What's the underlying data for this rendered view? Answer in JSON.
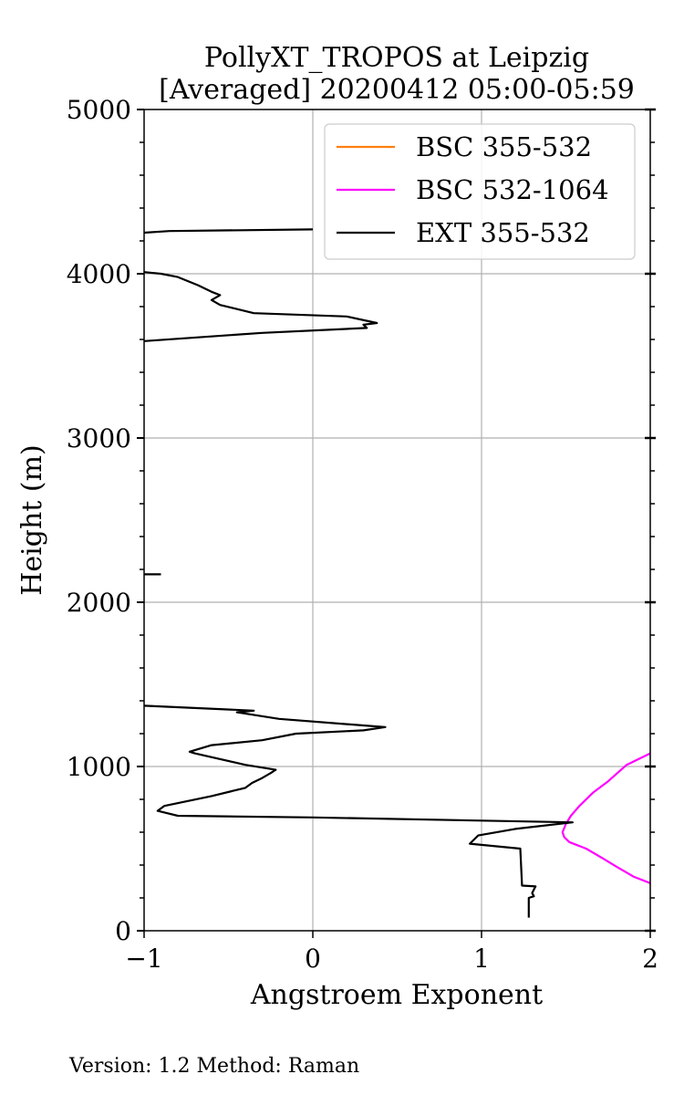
{
  "chart_data": {
    "type": "line",
    "title_line1": "PollyXT_TROPOS at Leipzig",
    "title_line2": "[Averaged] 20200412 05:00-05:59",
    "xlabel": "Angstroem Exponent",
    "ylabel": "Height (m)",
    "xlim": [
      -1,
      2
    ],
    "ylim": [
      0,
      5000
    ],
    "xticks": [
      -1,
      0,
      1,
      2
    ],
    "xtick_labels": [
      "−1",
      "0",
      "1",
      "2"
    ],
    "yticks": [
      0,
      1000,
      2000,
      3000,
      4000,
      5000
    ],
    "ytick_labels": [
      "0",
      "1000",
      "2000",
      "3000",
      "4000",
      "5000"
    ],
    "grid": true,
    "legend_position": "top-right",
    "series": [
      {
        "name": "BSC 355-532",
        "color": "#ff7f0e",
        "segments": []
      },
      {
        "name": "BSC 532-1064",
        "color": "#ff00ff",
        "segments": [
          [
            [
              2.0,
              290
            ],
            [
              1.9,
              330
            ],
            [
              1.8,
              390
            ],
            [
              1.72,
              440
            ],
            [
              1.62,
              500
            ],
            [
              1.52,
              540
            ],
            [
              1.49,
              570
            ],
            [
              1.48,
              600
            ],
            [
              1.5,
              650
            ],
            [
              1.53,
              700
            ],
            [
              1.58,
              760
            ],
            [
              1.66,
              840
            ],
            [
              1.75,
              910
            ],
            [
              1.86,
              1010
            ],
            [
              2.0,
              1080
            ]
          ]
        ]
      },
      {
        "name": "EXT 355-532",
        "color": "#000000",
        "segments": [
          [
            [
              1.28,
              80
            ],
            [
              1.28,
              200
            ],
            [
              1.31,
              210
            ],
            [
              1.3,
              230
            ],
            [
              1.32,
              270
            ],
            [
              1.24,
              275
            ],
            [
              1.23,
              500
            ],
            [
              0.93,
              530
            ],
            [
              0.98,
              580
            ],
            [
              1.2,
              620
            ],
            [
              1.54,
              660
            ],
            [
              0.0,
              690
            ],
            [
              -0.8,
              700
            ],
            [
              -0.92,
              730
            ],
            [
              -0.88,
              760
            ],
            [
              -0.6,
              820
            ],
            [
              -0.4,
              870
            ],
            [
              -0.36,
              900
            ],
            [
              -0.3,
              930
            ],
            [
              -0.25,
              960
            ],
            [
              -0.22,
              980
            ],
            [
              -0.4,
              1010
            ],
            [
              -0.7,
              1080
            ],
            [
              -0.73,
              1090
            ],
            [
              -0.6,
              1130
            ],
            [
              -0.3,
              1160
            ],
            [
              -0.1,
              1200
            ],
            [
              0.3,
              1220
            ],
            [
              0.43,
              1240
            ],
            [
              0.3,
              1250
            ],
            [
              -0.2,
              1290
            ],
            [
              -0.45,
              1330
            ],
            [
              -0.35,
              1340
            ],
            [
              -1.0,
              1370
            ]
          ],
          [
            [
              -1.0,
              2170
            ],
            [
              -0.9,
              2170
            ]
          ],
          [
            [
              -1.0,
              3590
            ],
            [
              -0.3,
              3640
            ],
            [
              0.32,
              3670
            ],
            [
              0.3,
              3690
            ],
            [
              0.38,
              3700
            ],
            [
              0.2,
              3740
            ],
            [
              -0.35,
              3760
            ],
            [
              -0.55,
              3810
            ],
            [
              -0.6,
              3840
            ],
            [
              -0.55,
              3870
            ],
            [
              -0.6,
              3890
            ],
            [
              -0.68,
              3930
            ],
            [
              -0.8,
              3980
            ],
            [
              -0.9,
              4000
            ],
            [
              -1.0,
              4010
            ]
          ],
          [
            [
              -1.0,
              4250
            ],
            [
              -0.85,
              4260
            ],
            [
              0.0,
              4270
            ]
          ]
        ]
      }
    ]
  },
  "footer": {
    "version_text": "Version: 1.2  Method: Raman"
  }
}
